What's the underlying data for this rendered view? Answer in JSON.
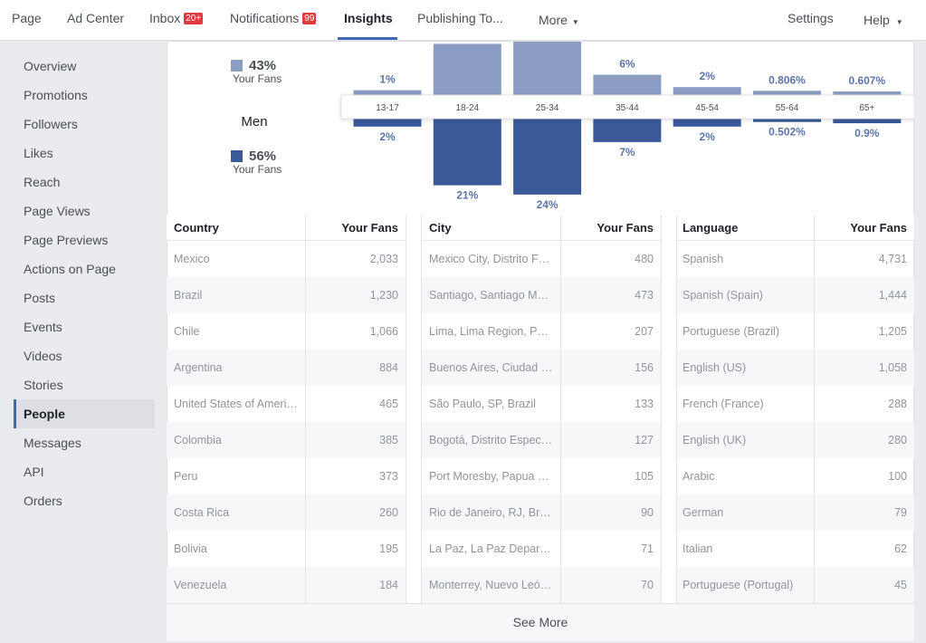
{
  "nav": {
    "items": [
      "Page",
      "Ad Center",
      "Inbox",
      "Notifications",
      "Insights",
      "Publishing To..."
    ],
    "inbox_badge": "20+",
    "notifications_badge": "99",
    "more": "More",
    "settings": "Settings",
    "help": "Help"
  },
  "sidebar": {
    "items": [
      "Overview",
      "Promotions",
      "Followers",
      "Likes",
      "Reach",
      "Page Views",
      "Page Previews",
      "Actions on Page",
      "Posts",
      "Events",
      "Videos",
      "Stories",
      "People",
      "Messages",
      "API",
      "Orders"
    ]
  },
  "chart_data": {
    "type": "bar",
    "label": "Men",
    "categories": [
      "13-17",
      "18-24",
      "25-34",
      "35-44",
      "45-54",
      "55-64",
      "65+"
    ],
    "series": [
      {
        "name": "Your Fans",
        "total": "43%",
        "color": "#8b9dc3",
        "values": [
          1,
          16,
          17,
          6,
          2,
          0.806,
          0.607
        ],
        "value_labels": [
          "1%",
          null,
          null,
          "6%",
          "2%",
          "0.806%",
          "0.607%"
        ]
      },
      {
        "name": "Your Fans",
        "total": "56%",
        "color": "#3b5998",
        "values": [
          2,
          21,
          24,
          7,
          2,
          0.502,
          0.9
        ],
        "value_labels": [
          "2%",
          "21%",
          "24%",
          "7%",
          "2%",
          "0.502%",
          "0.9%"
        ]
      }
    ]
  },
  "tables": [
    {
      "headers": [
        "Country",
        "Your Fans"
      ],
      "rows": [
        [
          "Mexico",
          "2,033"
        ],
        [
          "Brazil",
          "1,230"
        ],
        [
          "Chile",
          "1,066"
        ],
        [
          "Argentina",
          "884"
        ],
        [
          "United States of America",
          "465"
        ],
        [
          "Colombia",
          "385"
        ],
        [
          "Peru",
          "373"
        ],
        [
          "Costa Rica",
          "260"
        ],
        [
          "Bolivia",
          "195"
        ],
        [
          "Venezuela",
          "184"
        ]
      ]
    },
    {
      "headers": [
        "City",
        "Your Fans"
      ],
      "rows": [
        [
          "Mexico City, Distrito Fe…",
          "480"
        ],
        [
          "Santiago, Santiago Met…",
          "473"
        ],
        [
          "Lima, Lima Region, Peru",
          "207"
        ],
        [
          "Buenos Aires, Ciudad …",
          "156"
        ],
        [
          "São Paulo, SP, Brazil",
          "133"
        ],
        [
          "Bogotá, Distrito Especi…",
          "127"
        ],
        [
          "Port Moresby, Papua N…",
          "105"
        ],
        [
          "Rio de Janeiro, RJ, Brazil",
          "90"
        ],
        [
          "La Paz, La Paz Depart…",
          "71"
        ],
        [
          "Monterrey, Nuevo León…",
          "70"
        ]
      ]
    },
    {
      "headers": [
        "Language",
        "Your Fans"
      ],
      "rows": [
        [
          "Spanish",
          "4,731"
        ],
        [
          "Spanish (Spain)",
          "1,444"
        ],
        [
          "Portuguese (Brazil)",
          "1,205"
        ],
        [
          "English (US)",
          "1,058"
        ],
        [
          "French (France)",
          "288"
        ],
        [
          "English (UK)",
          "280"
        ],
        [
          "Arabic",
          "100"
        ],
        [
          "German",
          "79"
        ],
        [
          "Italian",
          "62"
        ],
        [
          "Portuguese (Portugal)",
          "45"
        ]
      ]
    }
  ],
  "see_more": "See More"
}
